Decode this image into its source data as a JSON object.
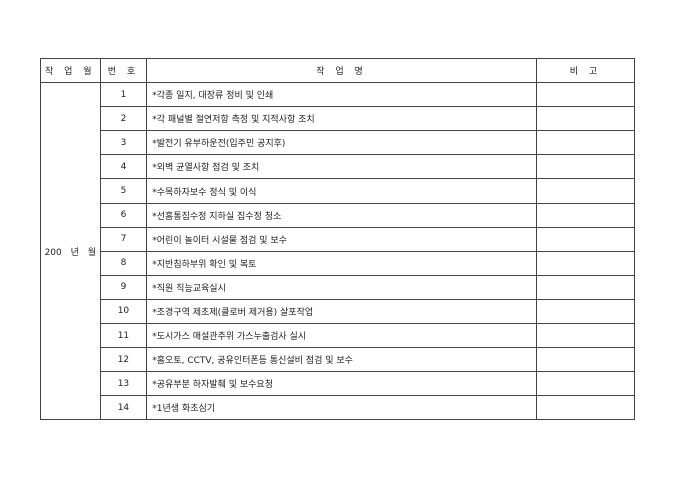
{
  "headers": {
    "month": "작 업 월",
    "number": "번 호",
    "task": "작 업 명",
    "note": "비 고"
  },
  "month_label": "200 년 월",
  "rows": [
    {
      "no": "1",
      "task": "*각종 일지, 대장류 정비 및 인쇄",
      "note": ""
    },
    {
      "no": "2",
      "task": "*각 패널별 절연저항 측정 및 지적사항 조치",
      "note": ""
    },
    {
      "no": "3",
      "task": "*발전기 유부하운전(입주민 공지후)",
      "note": ""
    },
    {
      "no": "4",
      "task": "*외벽 균열사항 점검 및 조치",
      "note": ""
    },
    {
      "no": "5",
      "task": "*수목하자보수 정식 및 이식",
      "note": ""
    },
    {
      "no": "6",
      "task": "*선홈통집수정 지하실 집수정 청소",
      "note": ""
    },
    {
      "no": "7",
      "task": "*어린이 놀이터 시설물 점검 및 보수",
      "note": ""
    },
    {
      "no": "8",
      "task": "*지반침하부위 확인 및 복토",
      "note": ""
    },
    {
      "no": "9",
      "task": "*직원 직능교육실시",
      "note": ""
    },
    {
      "no": "10",
      "task": "*조경구역 제초제(클로버 제거용) 살포작업",
      "note": ""
    },
    {
      "no": "11",
      "task": "*도시가스 매설관주위 가스누출검사 실시",
      "note": ""
    },
    {
      "no": "12",
      "task": "*홈오토, CCTV, 공유인터폰등 통신설비 점검 및 보수",
      "note": ""
    },
    {
      "no": "13",
      "task": "*공유부분 하자발췌 및 보수요청",
      "note": ""
    },
    {
      "no": "14",
      "task": "*1년생 화초심기",
      "note": ""
    }
  ]
}
